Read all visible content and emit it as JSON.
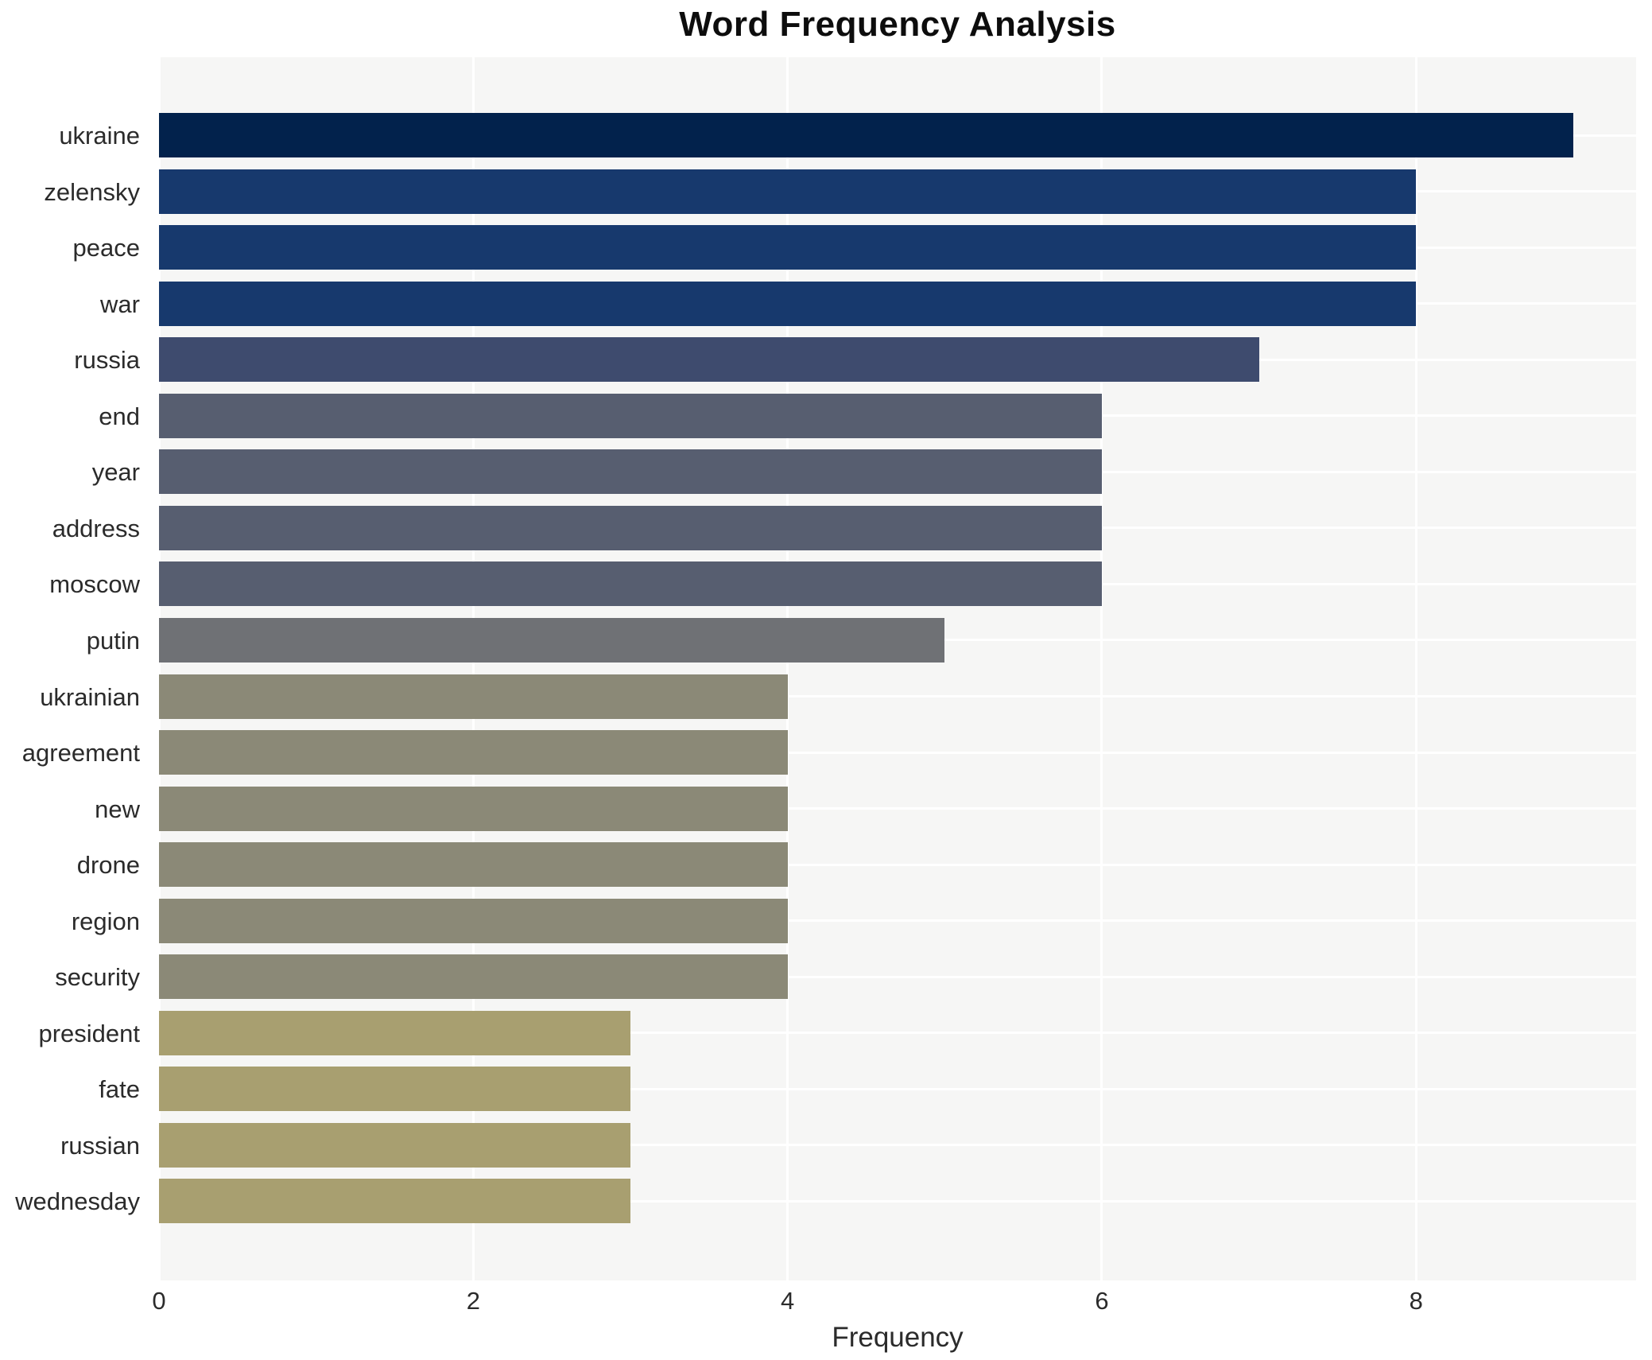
{
  "chart": {
    "title": "Word Frequency Analysis",
    "xlabel": "Frequency"
  },
  "chart_data": {
    "type": "bar",
    "orientation": "horizontal",
    "title": "Word Frequency Analysis",
    "xlabel": "Frequency",
    "ylabel": "",
    "categories": [
      "ukraine",
      "zelensky",
      "peace",
      "war",
      "russia",
      "end",
      "year",
      "address",
      "moscow",
      "putin",
      "ukrainian",
      "agreement",
      "new",
      "drone",
      "region",
      "security",
      "president",
      "fate",
      "russian",
      "wednesday"
    ],
    "values": [
      9,
      8,
      8,
      8,
      7,
      6,
      6,
      6,
      6,
      5,
      4,
      4,
      4,
      4,
      4,
      4,
      3,
      3,
      3,
      3
    ],
    "bar_colors": [
      "#02224c",
      "#17396d",
      "#17396d",
      "#17396d",
      "#3e4b6e",
      "#575e70",
      "#575e70",
      "#575e70",
      "#575e70",
      "#6f7175",
      "#8b8977",
      "#8b8977",
      "#8b8977",
      "#8b8977",
      "#8b8977",
      "#8b8977",
      "#a89f70",
      "#a89f70",
      "#a89f70",
      "#a89f70"
    ],
    "xticks": [
      0,
      2,
      4,
      6,
      8
    ],
    "xlim": [
      0,
      9.4
    ],
    "grid": true,
    "legend": "none",
    "plot_bg_color": "#f6f6f5",
    "grid_color": "#ffffff",
    "figure_bg_color": "#ffffff"
  }
}
